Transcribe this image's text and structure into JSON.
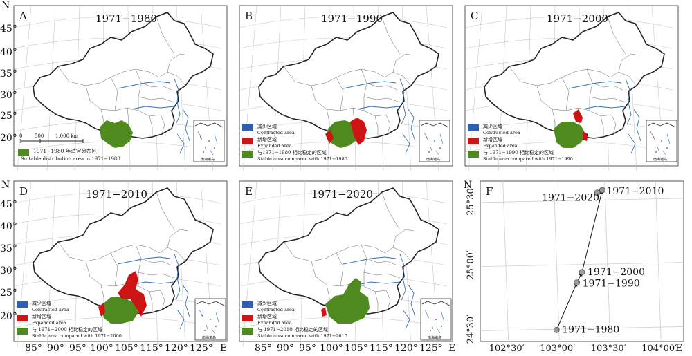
{
  "colors": {
    "stable": "#4e8a1e",
    "expanded": "#cc1414",
    "contracted": "#2f5fb0",
    "track_point": "#9a9a9a",
    "border": "#222222",
    "river": "#2f6fb5"
  },
  "axis": {
    "north_label": "N",
    "east_label": "E",
    "lat_ticks": [
      "45°",
      "40°",
      "35°",
      "30°",
      "25°",
      "20°"
    ],
    "lon_ticks": [
      "85°",
      "90°",
      "95°",
      "100°",
      "105°",
      "115°",
      "120°",
      "125°"
    ]
  },
  "panels": [
    {
      "letter": "A",
      "period": "1971−1980",
      "scale_labels": [
        "0",
        "500",
        "1,000 km"
      ],
      "legend": [
        {
          "key": "stable",
          "zh": "1971−1980 年适宜分布区",
          "en": "Suitable distribution area in 1971−1980"
        }
      ],
      "inset_label": "南海诸岛"
    },
    {
      "letter": "B",
      "period": "1971−1990",
      "legend": [
        {
          "key": "contracted",
          "zh": "减少区域",
          "en": "Contracted area"
        },
        {
          "key": "expanded",
          "zh": "新增区域",
          "en": "Expanded area"
        },
        {
          "key": "stable",
          "zh": "与1971−1980 相比稳定的区域",
          "en": "Stable area compared with 1971−1980"
        }
      ],
      "inset_label": "南海诸岛"
    },
    {
      "letter": "C",
      "period": "1971−2000",
      "legend": [
        {
          "key": "contracted",
          "zh": "减少区域",
          "en": "Contracted area"
        },
        {
          "key": "expanded",
          "zh": "新增区域",
          "en": "Expanded area"
        },
        {
          "key": "stable",
          "zh": "与 1971−1990 相比稳定的区域",
          "en": "Stable area compared with 1971−1990"
        }
      ],
      "inset_label": "南海诸岛"
    },
    {
      "letter": "D",
      "period": "1971−2010",
      "legend": [
        {
          "key": "contracted",
          "zh": "减少区域",
          "en": "Contracted area"
        },
        {
          "key": "expanded",
          "zh": "新增区域",
          "en": "Expanded area"
        },
        {
          "key": "stable",
          "zh": "与 1971−2000 相比稳定的区域",
          "en": "Stable area compared with 1971−2000"
        }
      ],
      "inset_label": "南海诸岛"
    },
    {
      "letter": "E",
      "period": "1971−2020",
      "legend": [
        {
          "key": "contracted",
          "zh": "减少区域",
          "en": "Contracted area"
        },
        {
          "key": "expanded",
          "zh": "新增区域",
          "en": "Expanded area"
        },
        {
          "key": "stable",
          "zh": "与 1971−2010 相比稳定的区域",
          "en": "Stable area compared with 1971−2010"
        }
      ],
      "inset_label": "南海诸岛"
    }
  ],
  "centroid_panel": {
    "letter": "F",
    "north_label": "N",
    "east_label": "E",
    "y_ticks": [
      {
        "lat": 24.5,
        "label": "24°30′"
      },
      {
        "lat": 25.0,
        "label": "25°00′"
      },
      {
        "lat": 25.5,
        "label": "25°30′"
      }
    ],
    "x_ticks": [
      {
        "lon": 102.5,
        "label": "102°30′"
      },
      {
        "lon": 103.0,
        "label": "103°00′"
      },
      {
        "lon": 103.5,
        "label": "103°30′"
      },
      {
        "lon": 104.0,
        "label": "104°00′"
      }
    ],
    "points": [
      {
        "label": "1971−1980",
        "lon": 103.0,
        "lat": 24.49
      },
      {
        "label": "1971−1990",
        "lon": 103.2,
        "lat": 24.86
      },
      {
        "label": "1971−2000",
        "lon": 103.25,
        "lat": 24.94
      },
      {
        "label": "1971−2020",
        "lon": 103.4,
        "lat": 25.56
      },
      {
        "label": "1971−2010",
        "lon": 103.45,
        "lat": 25.58
      }
    ]
  }
}
